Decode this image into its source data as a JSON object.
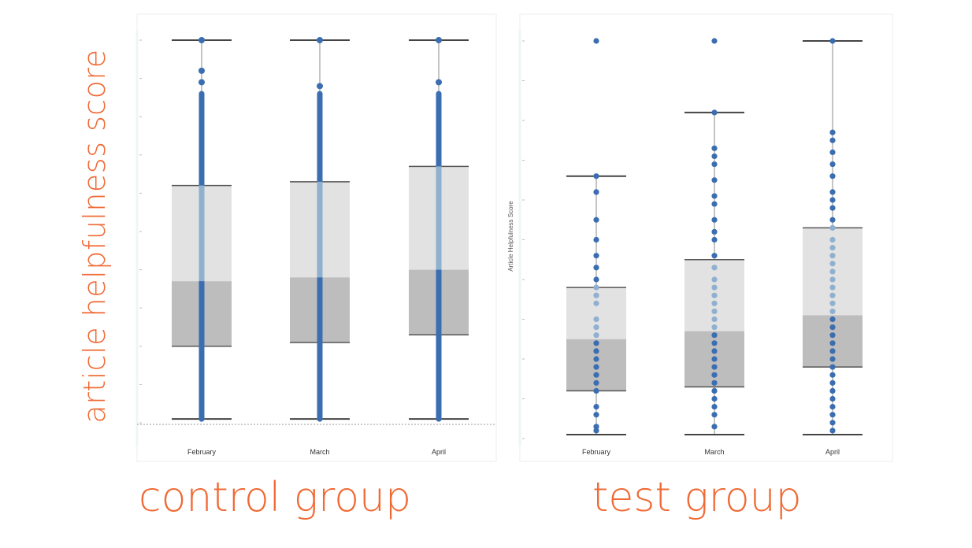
{
  "y_axis_title": "article helpfulness score",
  "colors": {
    "accent": "#f06a35",
    "point": "#3b6eb1",
    "upper_box": "#e2e2e2",
    "lower_box": "#bdbdbd",
    "whisker": "#444444"
  },
  "chart_data": [
    {
      "type": "box",
      "group_label": "control group",
      "ylabel": "",
      "ylim": [
        0,
        10
      ],
      "grid": false,
      "categories": [
        "February",
        "March",
        "April"
      ],
      "boxes": [
        {
          "low": 0.1,
          "q1": 2.0,
          "median": 3.7,
          "q3": 6.2,
          "high": 10.0
        },
        {
          "low": 0.1,
          "q1": 2.1,
          "median": 3.8,
          "q3": 6.3,
          "high": 10.0
        },
        {
          "low": 0.1,
          "q1": 2.3,
          "median": 4.0,
          "q3": 6.7,
          "high": 10.0
        }
      ],
      "outliers": [
        [
          10.0,
          9.2,
          8.9
        ],
        [
          10.0,
          8.8
        ],
        [
          10.0,
          8.9
        ]
      ],
      "dense_points": true
    },
    {
      "type": "box",
      "group_label": "test group",
      "ylabel": "Article Helpfulness Score",
      "ylim": [
        0,
        10
      ],
      "grid": false,
      "categories": [
        "February",
        "March",
        "April"
      ],
      "boxes": [
        {
          "low": 0.1,
          "q1": 1.2,
          "median": 2.5,
          "q3": 3.8,
          "high": 6.6
        },
        {
          "low": 0.1,
          "q1": 1.3,
          "median": 2.7,
          "q3": 4.5,
          "high": 8.2
        },
        {
          "low": 0.1,
          "q1": 1.8,
          "median": 3.1,
          "q3": 5.3,
          "high": 10.0
        }
      ],
      "points": [
        [
          10.0,
          6.6,
          6.2,
          5.5,
          5.0,
          4.6,
          4.3,
          4.0,
          3.8,
          3.6,
          3.4,
          3.0,
          2.8,
          2.6,
          2.4,
          2.2,
          2.0,
          1.8,
          1.6,
          1.4,
          1.2,
          0.8,
          0.6,
          0.3,
          0.2
        ],
        [
          10.0,
          8.2,
          7.3,
          7.1,
          6.9,
          6.5,
          6.1,
          5.9,
          5.5,
          5.2,
          5.0,
          4.6,
          4.3,
          4.0,
          3.8,
          3.6,
          3.4,
          3.2,
          3.0,
          2.8,
          2.6,
          2.4,
          2.2,
          2.0,
          1.8,
          1.6,
          1.4,
          1.2,
          1.0,
          0.8,
          0.6,
          0.3
        ],
        [
          10.0,
          7.7,
          7.5,
          7.2,
          6.9,
          6.6,
          6.2,
          6.0,
          5.8,
          5.5,
          5.3,
          5.0,
          4.8,
          4.6,
          4.4,
          4.2,
          4.0,
          3.8,
          3.6,
          3.4,
          3.2,
          3.0,
          2.8,
          2.6,
          2.4,
          2.2,
          2.0,
          1.8,
          1.6,
          1.4,
          1.2,
          1.0,
          0.8,
          0.6,
          0.4,
          0.2
        ]
      ]
    }
  ]
}
